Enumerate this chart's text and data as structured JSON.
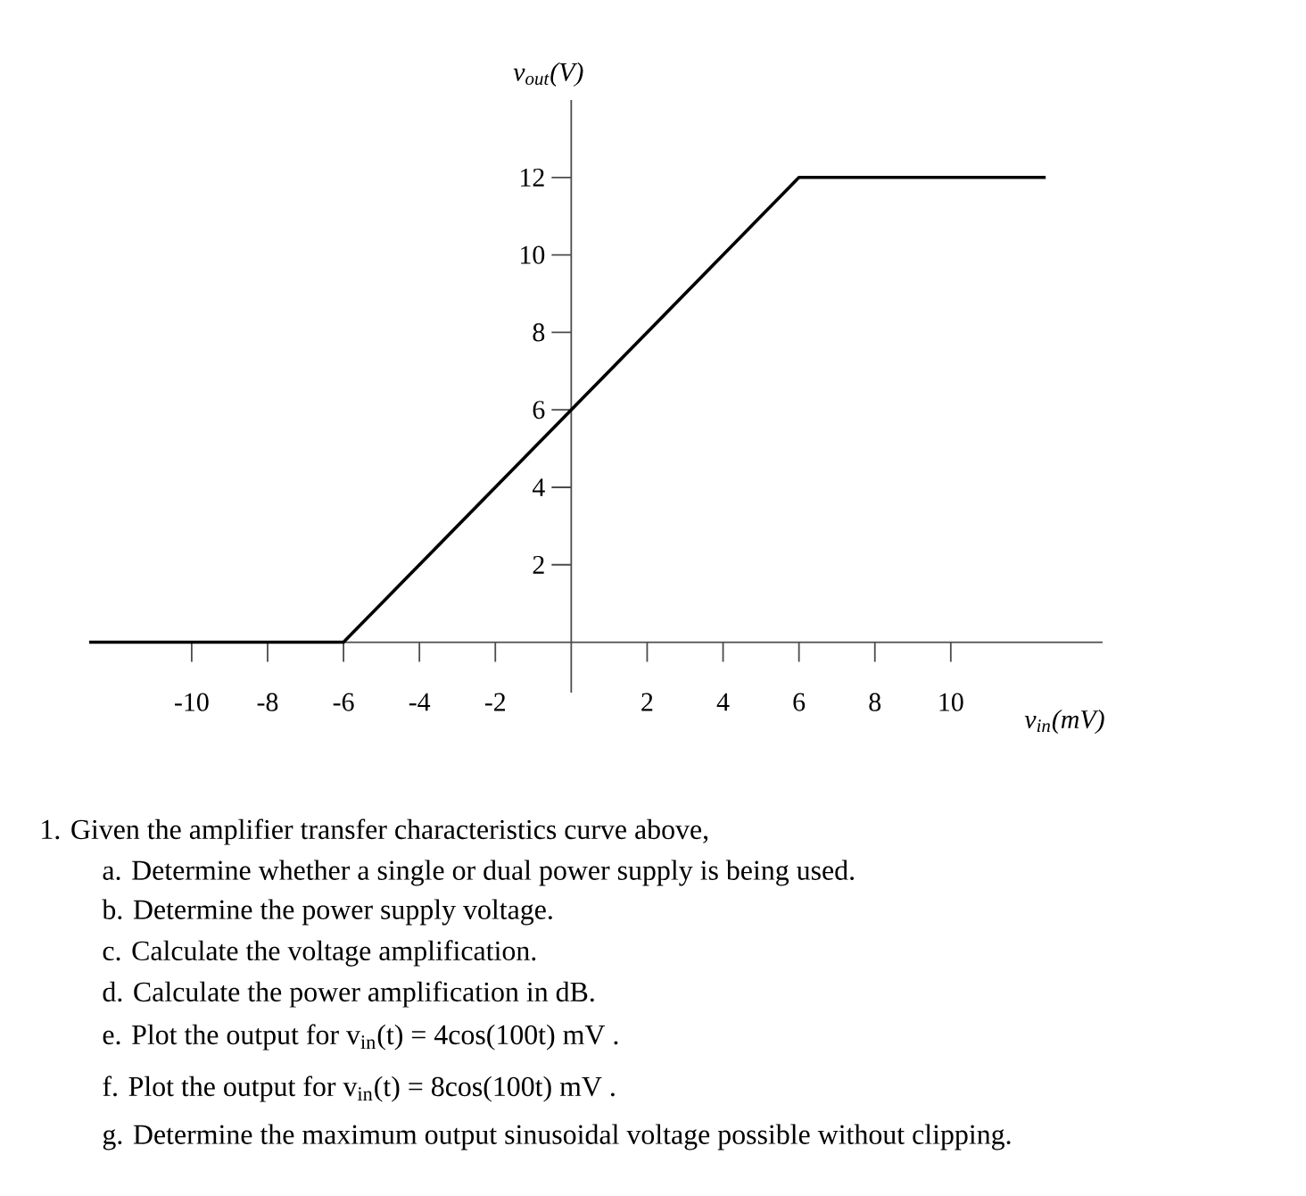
{
  "chart_data": {
    "type": "line",
    "xlabel": "v$_{in}$(mV)",
    "ylabel": "v$_{out}$(V)",
    "x": [
      -12.7,
      -6,
      6,
      12.5
    ],
    "values": [
      0,
      0,
      12,
      12
    ],
    "color": "#000000",
    "marker": "none",
    "line_style": "solid",
    "xlim": [
      -12.7,
      14
    ],
    "ylim": [
      -1.3,
      14
    ],
    "xticks": [
      -10,
      -8,
      -6,
      -4,
      -2,
      2,
      4,
      6,
      8,
      10
    ],
    "yticks": [
      2,
      4,
      6,
      8,
      10,
      12
    ],
    "annotations": [
      "1. Given the amplifier transfer characteristics curve above,",
      "a. Determine whether a single or dual power supply is being used.",
      "b. Determine the power supply voltage.",
      "c. Calculate the voltage amplification.",
      "d. Calculate the power amplification in dB.",
      "e. Plot the output for v$_{in}$(t) = 4cos(100t) mV .",
      "f. Plot the output for v$_{in}$(t) = 8cos(100t) mV .",
      "g. Determine the maximum output sinusoidal voltage possible without clipping."
    ]
  }
}
